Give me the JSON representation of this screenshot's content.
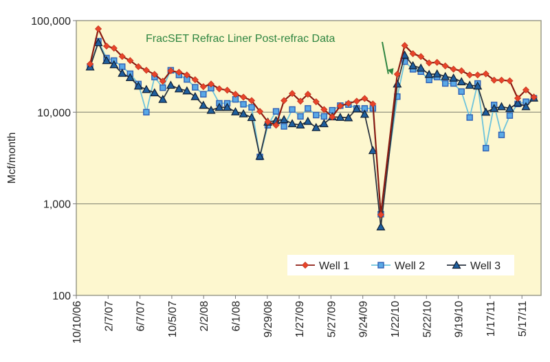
{
  "chart_data": {
    "type": "line",
    "title": "",
    "xlabel": "",
    "ylabel": "Mcf/month",
    "yscale": "log",
    "ylim": [
      100,
      100000
    ],
    "y_ticks": [
      {
        "value": 100,
        "label": "100"
      },
      {
        "value": 1000,
        "label": "1,000"
      },
      {
        "value": 10000,
        "label": "10,000"
      },
      {
        "value": 100000,
        "label": "100,000"
      }
    ],
    "x_start": "2006-10-10",
    "x_ticks": [
      {
        "date": "2006-10-10",
        "label": "10/10/06"
      },
      {
        "date": "2007-02-07",
        "label": "2/7/07"
      },
      {
        "date": "2007-06-07",
        "label": "6/7/07"
      },
      {
        "date": "2007-10-05",
        "label": "10/5/07"
      },
      {
        "date": "2008-02-02",
        "label": "2/2/08"
      },
      {
        "date": "2008-06-01",
        "label": "6/1/08"
      },
      {
        "date": "2008-09-29",
        "label": "9/29/08"
      },
      {
        "date": "2009-01-27",
        "label": "1/27/09"
      },
      {
        "date": "2009-05-27",
        "label": "5/27/09"
      },
      {
        "date": "2009-09-24",
        "label": "9/24/09"
      },
      {
        "date": "2010-01-22",
        "label": "1/22/10"
      },
      {
        "date": "2010-05-22",
        "label": "5/22/10"
      },
      {
        "date": "2010-09-19",
        "label": "9/19/10"
      },
      {
        "date": "2011-01-17",
        "label": "1/17/11"
      },
      {
        "date": "2011-05-17",
        "label": "5/17/11"
      }
    ],
    "x_end": "2011-07-25",
    "grid": "horizontal major",
    "legend": "bottom-right",
    "annotation": {
      "text": "FracSET Refrac Liner Post-refrac Data",
      "points_to_date": "2010-02-01",
      "color": "#2e8540"
    },
    "x": [
      "2006-12-01",
      "2007-01-01",
      "2007-02-01",
      "2007-03-01",
      "2007-04-01",
      "2007-05-01",
      "2007-06-01",
      "2007-07-01",
      "2007-08-01",
      "2007-09-01",
      "2007-10-01",
      "2007-11-01",
      "2007-12-01",
      "2008-01-01",
      "2008-02-01",
      "2008-03-01",
      "2008-04-01",
      "2008-05-01",
      "2008-06-01",
      "2008-07-01",
      "2008-08-01",
      "2008-09-01",
      "2008-10-01",
      "2008-11-01",
      "2008-12-01",
      "2009-01-01",
      "2009-02-01",
      "2009-03-01",
      "2009-04-01",
      "2009-05-01",
      "2009-06-01",
      "2009-07-01",
      "2009-08-01",
      "2009-09-01",
      "2009-10-01",
      "2009-11-01",
      "2009-12-01",
      "2010-02-01",
      "2010-03-01",
      "2010-04-01",
      "2010-05-01",
      "2010-06-01",
      "2010-07-01",
      "2010-08-01",
      "2010-09-01",
      "2010-10-01",
      "2010-11-01",
      "2010-12-01",
      "2011-01-01",
      "2011-02-01",
      "2011-03-01",
      "2011-04-01",
      "2011-05-01",
      "2011-06-01",
      "2011-07-01"
    ],
    "series": [
      {
        "name": "Well 1",
        "color": "#e8442a",
        "line_color": "#8b1a10",
        "marker": "diamond",
        "values": [
          33600,
          81300,
          52700,
          50000,
          40600,
          36600,
          31400,
          28700,
          25900,
          21800,
          28300,
          27300,
          25500,
          22600,
          19000,
          20300,
          18000,
          17400,
          15700,
          14600,
          13400,
          10200,
          7850,
          7200,
          13400,
          16000,
          13200,
          15700,
          13000,
          10700,
          8860,
          11700,
          12500,
          13200,
          14100,
          12300,
          760,
          26000,
          53500,
          43500,
          40500,
          34500,
          35000,
          32000,
          29500,
          28300,
          25500,
          25500,
          26200,
          22400,
          22400,
          22000,
          14200,
          17500,
          14600
        ]
      },
      {
        "name": "Well 2",
        "color": "#5aa9e6",
        "line_color": "#6cc3dc",
        "marker": "square",
        "values": [
          31600,
          59500,
          39000,
          36600,
          31400,
          26300,
          20300,
          10000,
          24200,
          18500,
          28700,
          25500,
          22800,
          18700,
          15700,
          18300,
          12500,
          12500,
          13800,
          12200,
          11300,
          3250,
          7200,
          10200,
          7000,
          10700,
          9000,
          11000,
          9300,
          9000,
          10500,
          11800,
          12100,
          11000,
          11000,
          11000,
          770,
          14800,
          35700,
          29400,
          27700,
          22500,
          24200,
          20600,
          20600,
          16800,
          8750,
          20600,
          4050,
          12000,
          5650,
          9200,
          12300,
          13000,
          14200
        ]
      },
      {
        "name": "Well 3",
        "color": "#1f5f9e",
        "line_color": "#2b3440",
        "marker": "triangle",
        "values": [
          31200,
          57500,
          36600,
          33000,
          26600,
          23900,
          19300,
          17700,
          16300,
          13800,
          19700,
          18000,
          17100,
          14800,
          11900,
          10500,
          11300,
          11300,
          10100,
          9600,
          8750,
          3300,
          7800,
          8100,
          8300,
          7500,
          7250,
          7950,
          6800,
          7500,
          8900,
          8800,
          8700,
          10900,
          9500,
          3810,
          560,
          20300,
          42000,
          32200,
          30300,
          25900,
          26200,
          24500,
          23600,
          21500,
          19700,
          19300,
          10000,
          11000,
          11500,
          11000,
          12600,
          11500,
          14300
        ]
      }
    ]
  }
}
